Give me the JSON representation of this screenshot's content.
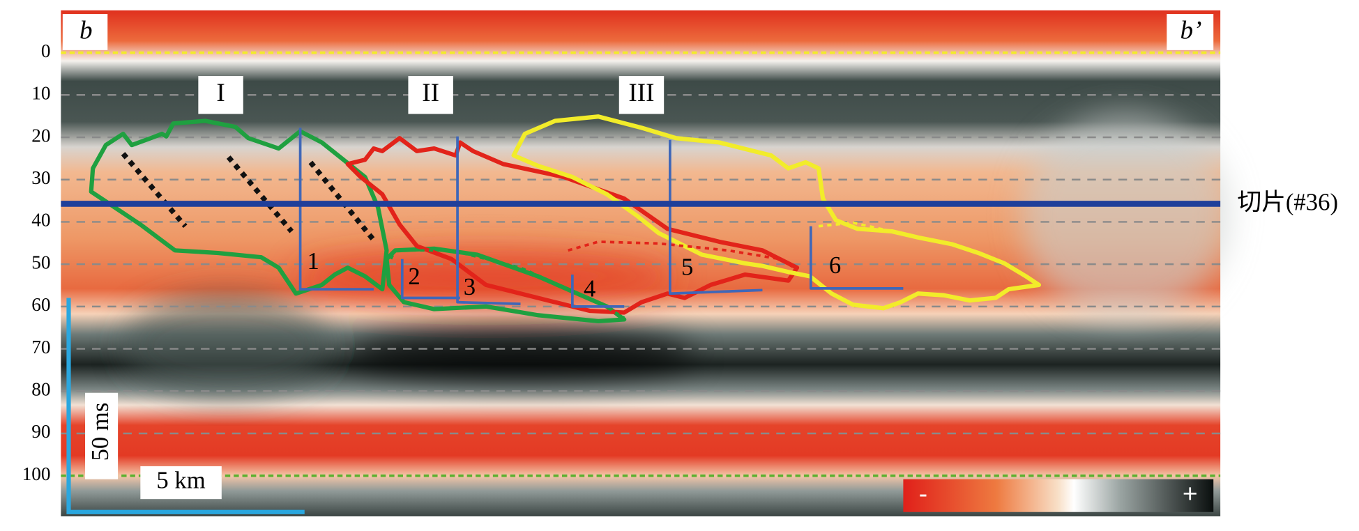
{
  "section": {
    "left_label": "b",
    "right_label": "b’",
    "y_axis": {
      "ticks": [
        0,
        10,
        20,
        30,
        40,
        50,
        60,
        70,
        80,
        90,
        100
      ]
    },
    "zones": [
      "I",
      "II",
      "III"
    ],
    "faults": [
      "1",
      "2",
      "3",
      "4",
      "5",
      "6"
    ],
    "slice_label": "切片(#36)",
    "scale": {
      "time": "50 ms",
      "distance": "5 km"
    },
    "colorbar": {
      "negative": "-",
      "positive": "+"
    }
  }
}
